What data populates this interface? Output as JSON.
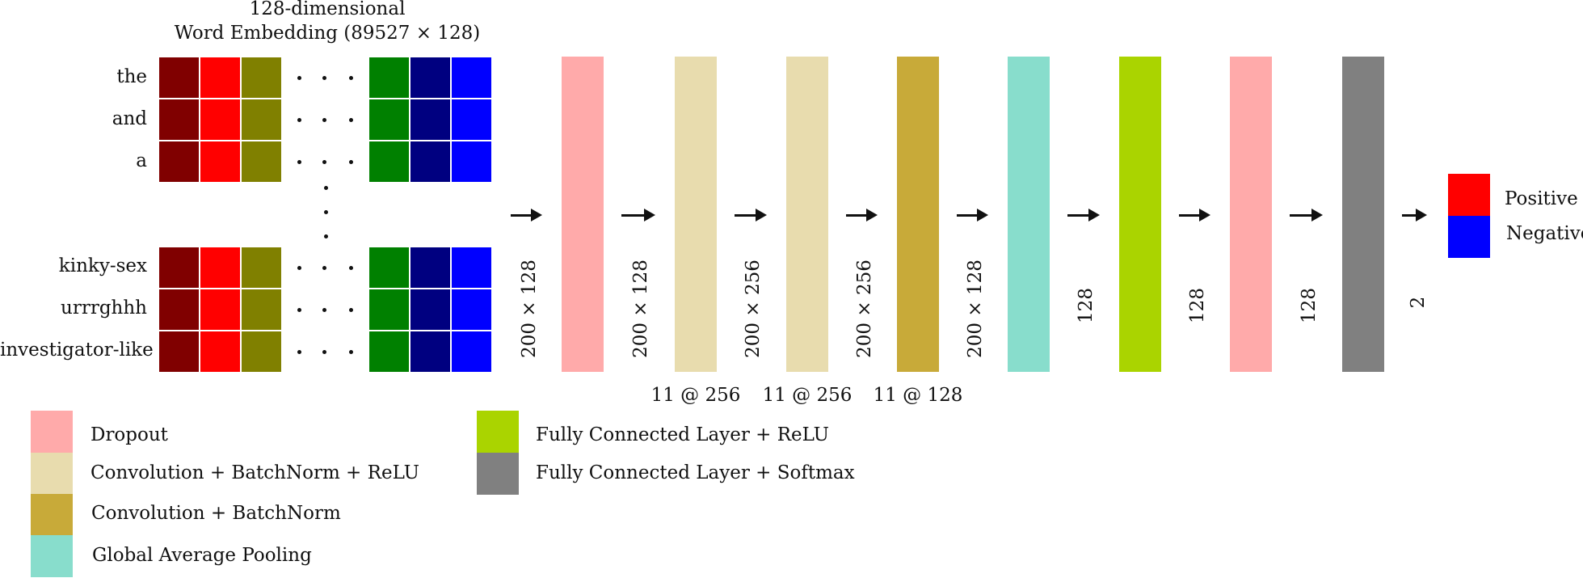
{
  "embedding": {
    "title_line1": "128-dimensional",
    "title_line2": "Word Embedding (89527 × 128)",
    "words_top": [
      "the",
      "and",
      "a"
    ],
    "words_bottom": [
      "kinky-sex",
      "urrrghhh",
      "investigator-like"
    ],
    "cell_colors_left": [
      "#800000",
      "#ff0000",
      "#808000"
    ],
    "cell_colors_right": [
      "#008000",
      "#000080",
      "#0000ff"
    ]
  },
  "layers": [
    {
      "color": "#ffaaaa",
      "input_dim": "200 × 128",
      "kernel": ""
    },
    {
      "color": "#e8dcae",
      "input_dim": "200 × 128",
      "kernel": "11 @ 256"
    },
    {
      "color": "#e8dcae",
      "input_dim": "200 × 256",
      "kernel": "11 @ 256"
    },
    {
      "color": "#c8aa39",
      "input_dim": "200 × 256",
      "kernel": "11 @ 128"
    },
    {
      "color": "#88ddcc",
      "input_dim": "200 × 128",
      "kernel": ""
    },
    {
      "color": "#aad400",
      "input_dim": "128",
      "kernel": ""
    },
    {
      "color": "#ffaaaa",
      "input_dim": "128",
      "kernel": ""
    },
    {
      "color": "#808080",
      "input_dim": "128",
      "kernel": ""
    }
  ],
  "final_dim": "2",
  "output": {
    "classes": [
      {
        "label": "Positive",
        "color": "#ff0000"
      },
      {
        "label": "Negative",
        "color": "#0000ff"
      }
    ]
  },
  "legend": [
    {
      "label": "Dropout",
      "color": "#ffaaaa"
    },
    {
      "label": "Convolution + BatchNorm + ReLU",
      "color": "#e8dcae"
    },
    {
      "label": "Convolution + BatchNorm",
      "color": "#c8aa39"
    },
    {
      "label": "Global Average Pooling",
      "color": "#88ddcc"
    },
    {
      "label": "Fully Connected Layer + ReLU",
      "color": "#aad400"
    },
    {
      "label": "Fully Connected Layer + Softmax",
      "color": "#808080"
    }
  ]
}
